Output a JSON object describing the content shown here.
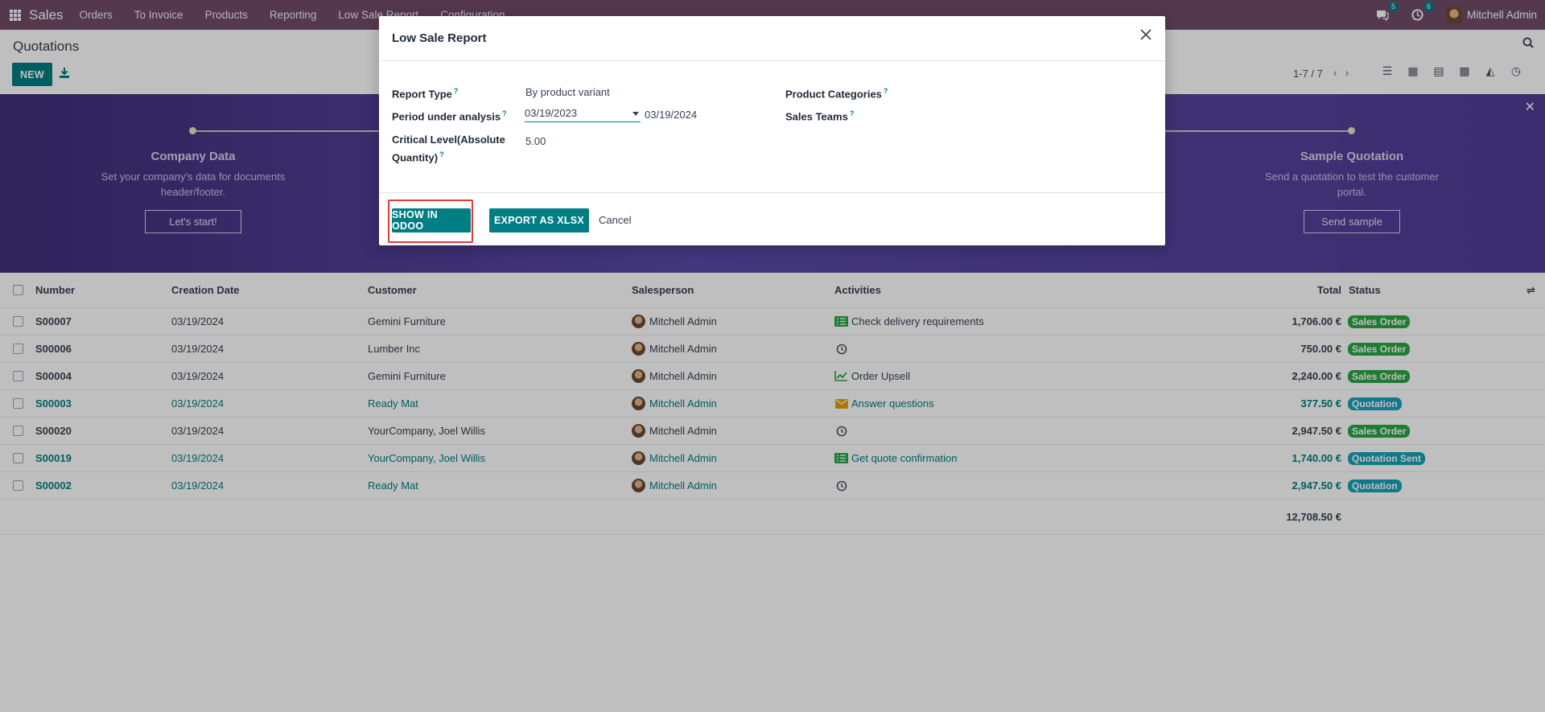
{
  "navbar": {
    "brand": "Sales",
    "menu": [
      "Orders",
      "To Invoice",
      "Products",
      "Reporting",
      "Low Sale Report",
      "Configuration"
    ],
    "messages_count": "5",
    "activities_count": "6",
    "user": "Mitchell Admin"
  },
  "control_panel": {
    "title": "Quotations",
    "new_label": "NEW",
    "pager": "1-7 / 7"
  },
  "banner": {
    "steps": [
      {
        "title": "Company Data",
        "desc": "Set your company's data for documents header/footer.",
        "button": "Let's start!"
      },
      {
        "title": "Sample Quotation",
        "desc": "Send a quotation to test the customer portal.",
        "button": "Send sample"
      }
    ]
  },
  "list": {
    "columns": {
      "number": "Number",
      "creation_date": "Creation Date",
      "customer": "Customer",
      "salesperson": "Salesperson",
      "activities": "Activities",
      "total": "Total",
      "status": "Status"
    },
    "rows": [
      {
        "number": "S00007",
        "date": "03/19/2024",
        "customer": "Gemini Furniture",
        "salesperson": "Mitchell Admin",
        "activity": "Check delivery requirements",
        "activity_icon": "task-list-icon",
        "total": "1,706.00 €",
        "status": "Sales Order",
        "status_color": "#28a745"
      },
      {
        "number": "S00006",
        "date": "03/19/2024",
        "customer": "Lumber Inc",
        "salesperson": "Mitchell Admin",
        "activity": "",
        "activity_icon": "clock-icon",
        "total": "750.00 €",
        "status": "Sales Order",
        "status_color": "#28a745"
      },
      {
        "number": "S00004",
        "date": "03/19/2024",
        "customer": "Gemini Furniture",
        "salesperson": "Mitchell Admin",
        "activity": "Order Upsell",
        "activity_icon": "chart-line-icon",
        "total": "2,240.00 €",
        "status": "Sales Order",
        "status_color": "#28a745"
      },
      {
        "number": "S00003",
        "date": "03/19/2024",
        "customer": "Ready Mat",
        "salesperson": "Mitchell Admin",
        "activity": "Answer questions",
        "activity_icon": "envelope-icon",
        "total": "377.50 €",
        "status": "Quotation",
        "status_color": "#17a2b8"
      },
      {
        "number": "S00020",
        "date": "03/19/2024",
        "customer": "YourCompany, Joel Willis",
        "salesperson": "Mitchell Admin",
        "activity": "",
        "activity_icon": "clock-icon",
        "total": "2,947.50 €",
        "status": "Sales Order",
        "status_color": "#28a745"
      },
      {
        "number": "S00019",
        "date": "03/19/2024",
        "customer": "YourCompany, Joel Willis",
        "salesperson": "Mitchell Admin",
        "activity": "Get quote confirmation",
        "activity_icon": "task-list-icon",
        "total": "1,740.00 €",
        "status": "Quotation Sent",
        "status_color": "#17a2b8"
      },
      {
        "number": "S00002",
        "date": "03/19/2024",
        "customer": "Ready Mat",
        "salesperson": "Mitchell Admin",
        "activity": "",
        "activity_icon": "clock-icon",
        "total": "2,947.50 €",
        "status": "Quotation",
        "status_color": "#17a2b8"
      }
    ],
    "grand_total": "12,708.50 €"
  },
  "modal": {
    "title": "Low Sale Report",
    "report_type_label": "Report Type",
    "report_type_value": "By product variant",
    "period_label": "Period under analysis",
    "period_from": "03/19/2023",
    "period_to": "03/19/2024",
    "critical_label": "Critical Level(Absolute Quantity)",
    "critical_value": "5.00",
    "product_categories_label": "Product Categories",
    "sales_teams_label": "Sales Teams",
    "show_button": "SHOW IN ODOO",
    "export_button": "EXPORT AS XLSX",
    "cancel_button": "Cancel"
  }
}
